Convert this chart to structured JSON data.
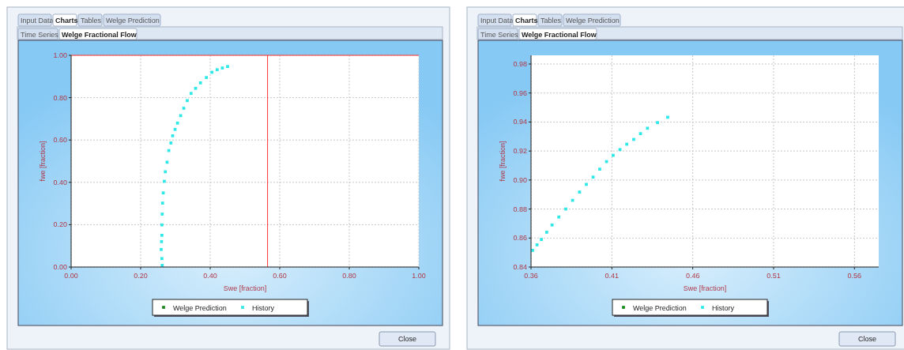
{
  "chart_data": [
    {
      "type": "scatter",
      "xlabel": "Swe [fraction]",
      "ylabel": "fwe [fraction]",
      "xlim": [
        0,
        1
      ],
      "ylim": [
        0,
        1
      ],
      "xticks": [
        {
          "value": 0,
          "label": "0.00"
        },
        {
          "value": 0.2,
          "label": "0.20"
        },
        {
          "value": 0.4,
          "label": "0.40"
        },
        {
          "value": 0.6,
          "label": "0.60"
        },
        {
          "value": 0.8,
          "label": "0.80"
        },
        {
          "value": 1,
          "label": "1.00"
        }
      ],
      "yticks": [
        {
          "value": 0,
          "label": "0.00"
        },
        {
          "value": 0.2,
          "label": "0.20"
        },
        {
          "value": 0.4,
          "label": "0.40"
        },
        {
          "value": 0.6,
          "label": "0.60"
        },
        {
          "value": 0.8,
          "label": "0.80"
        },
        {
          "value": 1,
          "label": "1.00"
        }
      ],
      "grid": true,
      "legend": "bottom",
      "marker": "square",
      "series": [
        {
          "name": "Welge Prediction",
          "color": "#1a8a1a"
        },
        {
          "name": "History",
          "color": "#2ee8e8",
          "x": [
            0.262,
            0.261,
            0.259,
            0.26,
            0.261,
            0.261,
            0.262,
            0.263,
            0.265,
            0.268,
            0.271,
            0.276,
            0.281,
            0.287,
            0.292,
            0.299,
            0.306,
            0.315,
            0.324,
            0.334,
            0.345,
            0.358,
            0.372,
            0.389,
            0.405,
            0.42,
            0.435,
            0.45
          ],
          "values": [
            0.008,
            0.04,
            0.083,
            0.12,
            0.15,
            0.199,
            0.25,
            0.302,
            0.35,
            0.405,
            0.45,
            0.495,
            0.55,
            0.586,
            0.62,
            0.65,
            0.68,
            0.715,
            0.75,
            0.786,
            0.82,
            0.844,
            0.87,
            0.895,
            0.92,
            0.932,
            0.94,
            0.947
          ]
        }
      ],
      "ref_lines": [
        {
          "axis": "x",
          "value": 0.565,
          "color": "#ff3030"
        },
        {
          "axis": "y",
          "value": 1,
          "color": "#ff3030"
        }
      ],
      "annotations": [
        "Input Data",
        "Charts",
        "Tables",
        "Welge Prediction",
        "Time Series",
        "Welge Fractional Flow",
        "Close"
      ]
    },
    {
      "type": "scatter",
      "xlabel": "Swe [fraction]",
      "ylabel": "fwe [fraction]",
      "xlim": [
        0.36,
        0.575
      ],
      "ylim": [
        0.84,
        0.986
      ],
      "xticks": [
        0.36,
        0.41,
        0.46,
        0.51,
        0.56
      ],
      "yticks": [
        {
          "value": 0.84,
          "label": "0.84"
        },
        {
          "value": 0.86,
          "label": "0.86"
        },
        {
          "value": 0.88,
          "label": "0.88"
        },
        {
          "value": 0.9,
          "label": "0.90"
        },
        {
          "value": 0.92,
          "label": "0.92"
        },
        {
          "value": 0.94,
          "label": "0.94"
        },
        {
          "value": 0.96,
          "label": "0.96"
        },
        {
          "value": 0.98,
          "label": "0.98"
        }
      ],
      "grid": true,
      "legend": "bottom",
      "marker": "square",
      "series": [
        {
          "name": "Welge Prediction",
          "color": "#1a8a1a"
        },
        {
          "name": "History",
          "color": "#2ee8e8",
          "x": [
            0.361,
            0.3637,
            0.3664,
            0.3697,
            0.373,
            0.3772,
            0.3815,
            0.3857,
            0.39,
            0.3942,
            0.3984,
            0.4025,
            0.4067,
            0.4108,
            0.415,
            0.4192,
            0.4235,
            0.4277,
            0.432,
            0.4382,
            0.4445
          ],
          "values": [
            0.8515,
            0.8553,
            0.859,
            0.864,
            0.869,
            0.8745,
            0.88,
            0.886,
            0.8917,
            0.897,
            0.902,
            0.9075,
            0.9127,
            0.917,
            0.921,
            0.9247,
            0.928,
            0.932,
            0.9357,
            0.9396,
            0.9433
          ]
        }
      ],
      "annotations": [
        "Input Data",
        "Charts",
        "Tables",
        "Welge Prediction",
        "Time Series",
        "Welge Fractional Flow",
        "Close"
      ]
    }
  ]
}
